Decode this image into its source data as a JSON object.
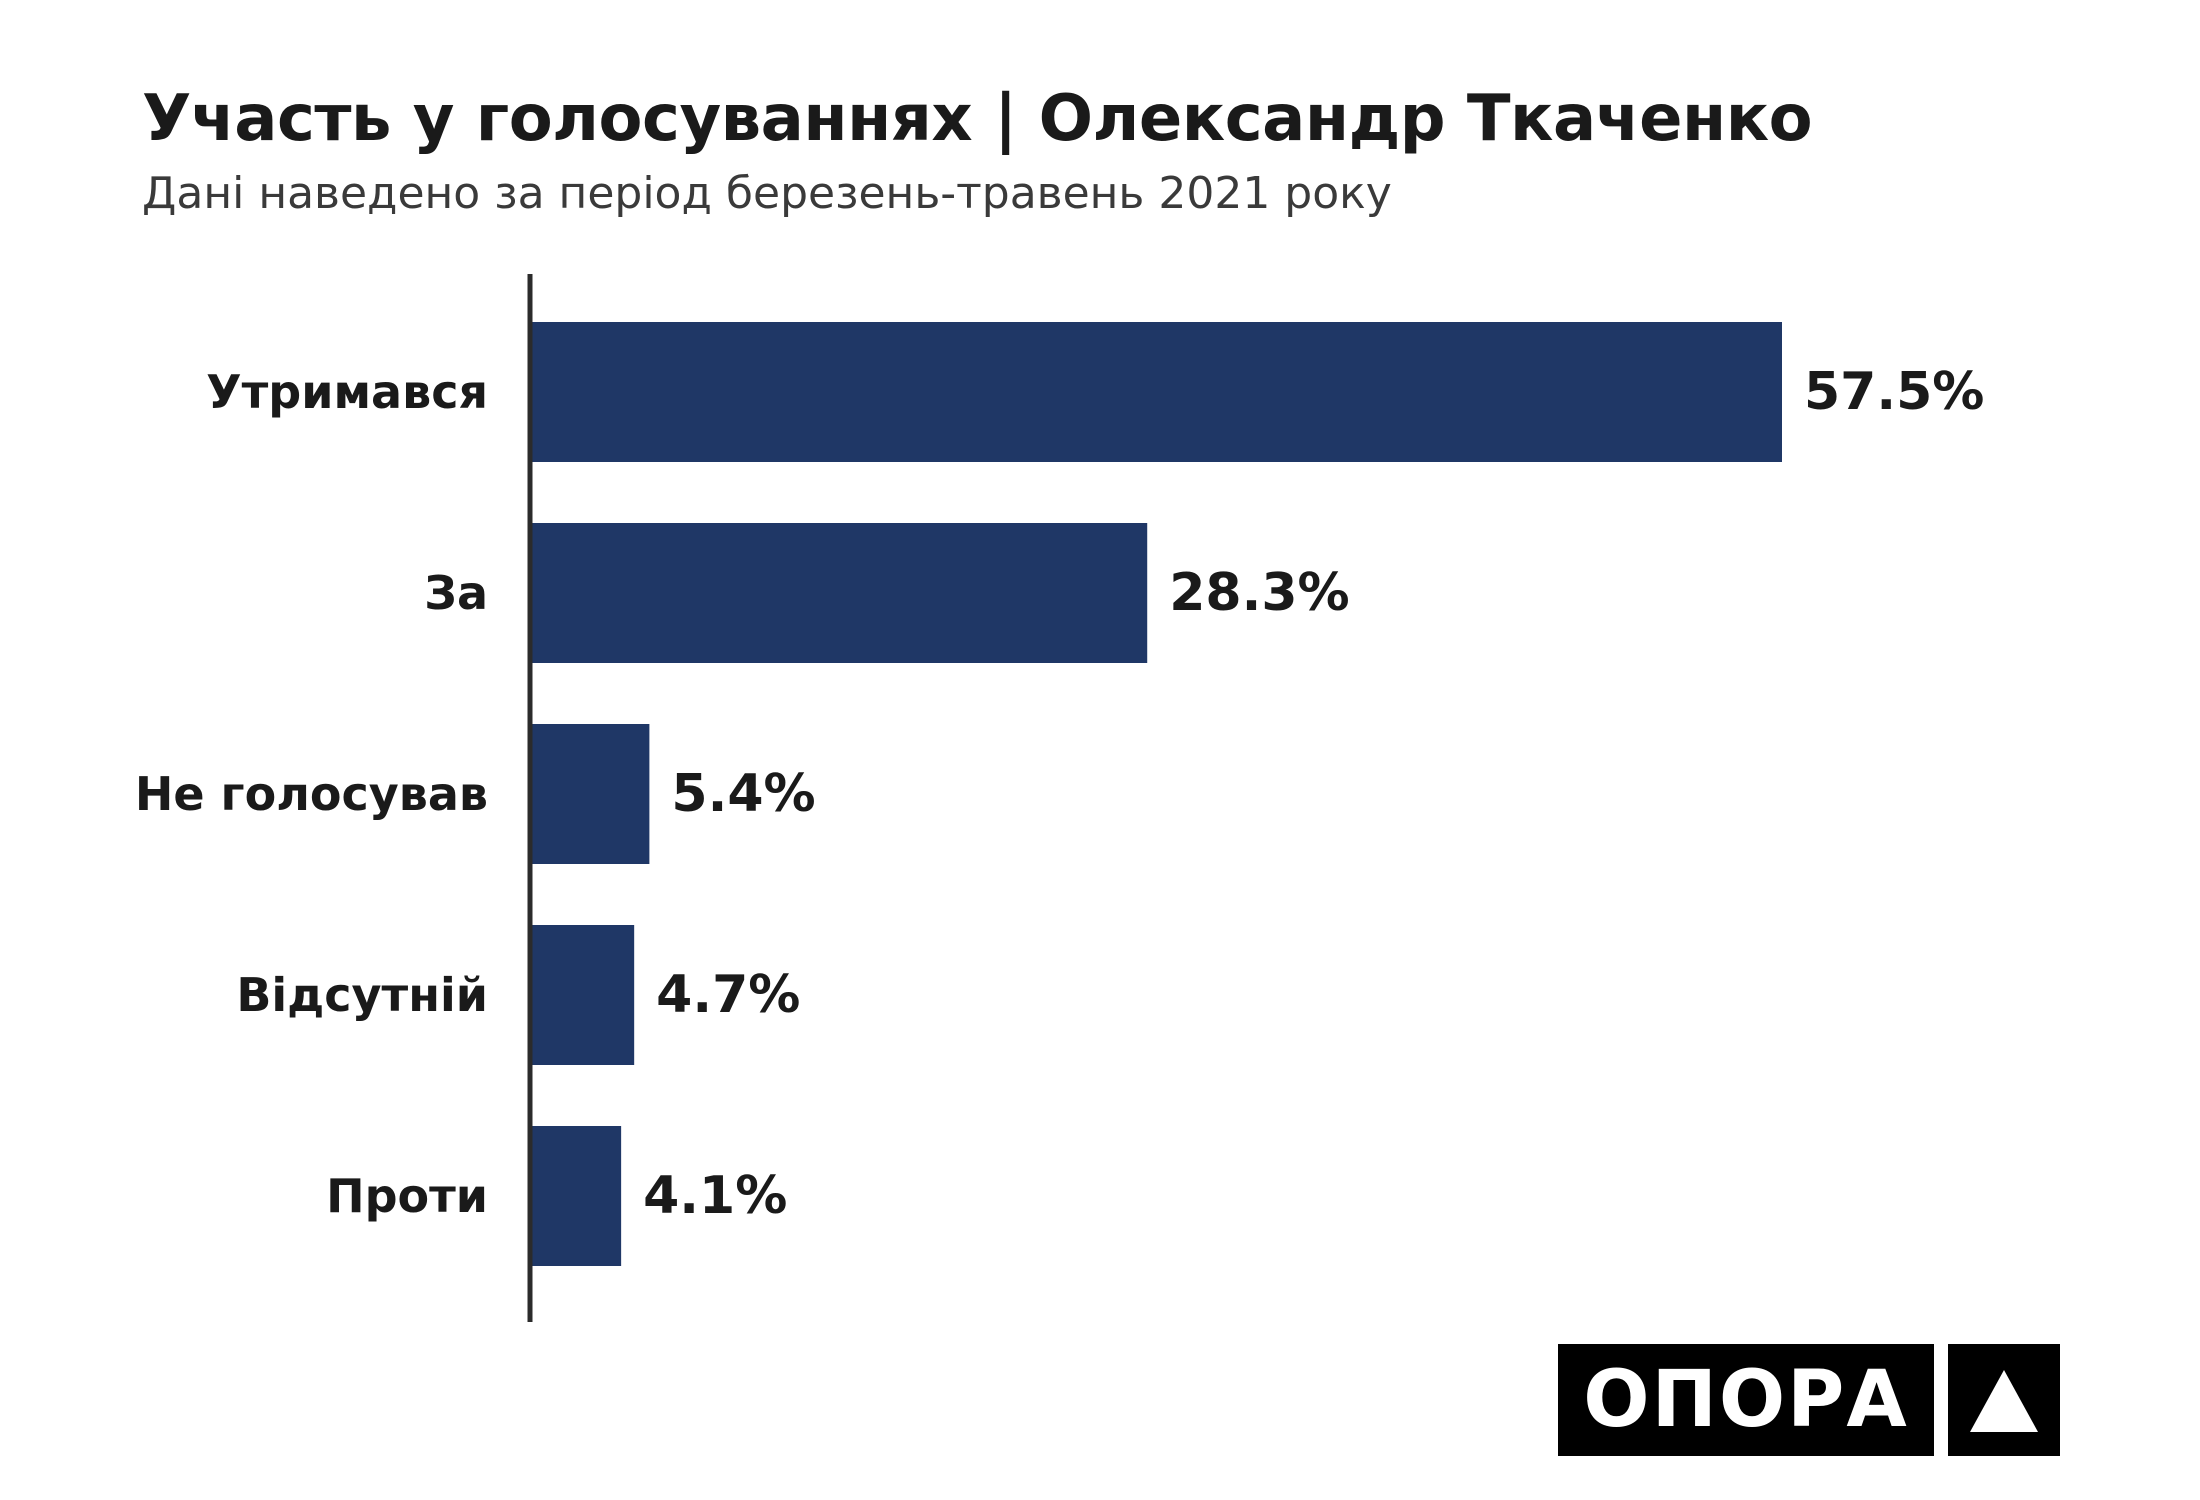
{
  "chart_data": {
    "type": "bar",
    "orientation": "horizontal",
    "title": "Участь у голосуваннях | Олександр Ткаченко",
    "subtitle": "Дані наведено за період березень-травень 2021 року",
    "categories": [
      "Утримався",
      "За",
      "Не голосував",
      "Відсутній",
      "Проти"
    ],
    "values": [
      57.5,
      28.3,
      5.4,
      4.7,
      4.1
    ],
    "value_labels": [
      "57.5%",
      "28.3%",
      "5.4%",
      "4.7%",
      "4.1%"
    ],
    "unit": "%",
    "xlim": [
      0,
      57.5
    ],
    "grid": false,
    "legend": "none",
    "bar_color": "#1f3766"
  },
  "branding": {
    "logo_text": "ОПОРА",
    "logo_icon": "triangle-icon"
  },
  "colors": {
    "bar": "#1f3766",
    "axis": "#2b2b2b",
    "text": "#1a1a1a",
    "logo_bg": "#000000",
    "logo_fg": "#ffffff"
  }
}
